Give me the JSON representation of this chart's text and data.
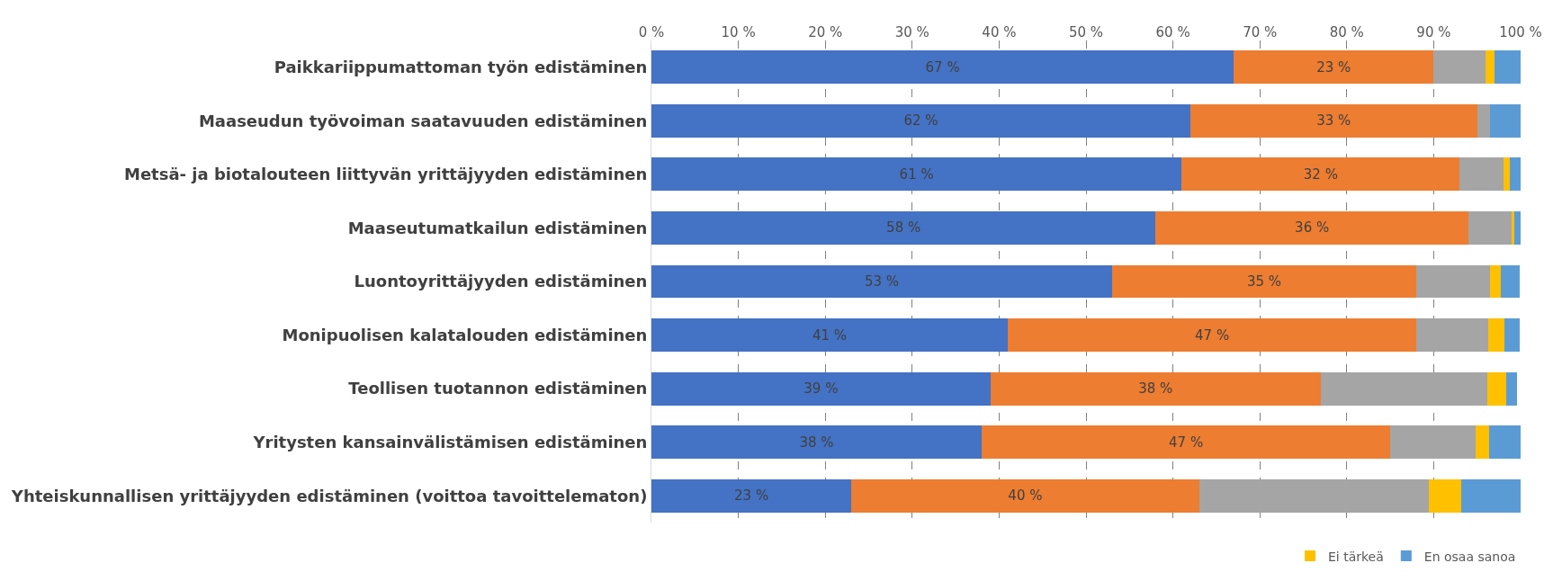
{
  "chart_data": {
    "type": "bar",
    "orientation": "horizontal",
    "stacked": true,
    "categories": [
      "Paikkariippumattoman työn edistäminen",
      "Maaseudun työvoiman saatavuuden edistäminen",
      "Metsä- ja biotalouteen liittyvän yrittäjyyden edistäminen",
      "Maaseutumatkailun edistäminen",
      "Luontoyrittäjyyden edistäminen",
      "Monipuolisen kalatalouden edistäminen",
      "Teollisen tuotannon edistäminen",
      "Yritysten kansainvälistämisen edistäminen",
      "Yhteiskunnallisen yrittäjyyden edistäminen (voittoa tavoittelematon)"
    ],
    "series": [
      {
        "color": "#4472c4",
        "values": [
          67,
          62,
          61,
          58,
          53,
          41,
          39,
          38,
          23
        ],
        "value_labels": [
          "67 %",
          "62 %",
          "61 %",
          "58 %",
          "53 %",
          "41 %",
          "39 %",
          "38 %",
          "23 %"
        ]
      },
      {
        "color": "#ed7d31",
        "values": [
          23,
          33,
          32,
          36,
          35,
          47,
          38,
          47,
          40
        ],
        "value_labels": [
          "23 %",
          "33 %",
          "32 %",
          "36 %",
          "35 %",
          "47 %",
          "38 %",
          "47 %",
          "40 %"
        ]
      },
      {
        "color": "#a5a5a5",
        "values": [
          6,
          1.5,
          5,
          5,
          8.5,
          8.3,
          19.2,
          9.8,
          26.4
        ]
      },
      {
        "name": "Ei tärkeä",
        "color": "#ffc000",
        "values": [
          1,
          0,
          0.8,
          0.3,
          1.2,
          1.8,
          2.1,
          1.6,
          3.8
        ]
      },
      {
        "name": "En osaa sanoa",
        "color": "#5b9bd5",
        "values": [
          3,
          3.5,
          1.2,
          0.7,
          2.2,
          1.8,
          1.3,
          3.6,
          6.8
        ]
      }
    ],
    "xlim": [
      0,
      100
    ],
    "xticks": [
      {
        "value": 0,
        "label": "0 %"
      },
      {
        "value": 10,
        "label": "10 %"
      },
      {
        "value": 20,
        "label": "20 %"
      },
      {
        "value": 30,
        "label": "30 %"
      },
      {
        "value": 40,
        "label": "40 %"
      },
      {
        "value": 50,
        "label": "50 %"
      },
      {
        "value": 60,
        "label": "60 %"
      },
      {
        "value": 70,
        "label": "70 %"
      },
      {
        "value": 80,
        "label": "80 %"
      },
      {
        "value": 90,
        "label": "90 %"
      },
      {
        "value": 100,
        "label": "100 %"
      }
    ],
    "grid": "x",
    "legend": "bottom right"
  }
}
